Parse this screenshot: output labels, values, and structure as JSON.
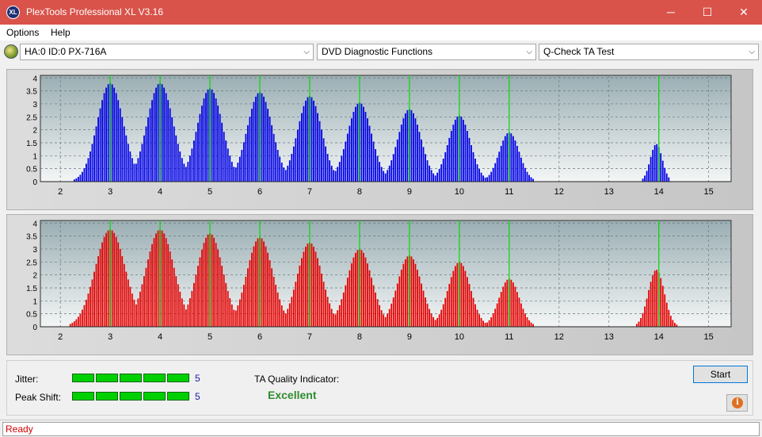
{
  "window": {
    "title": "PlexTools Professional XL V3.16",
    "icon_text": "XL",
    "minimize_glyph": "─",
    "maximize_glyph": "☐",
    "close_glyph": "✕"
  },
  "menu": {
    "items": [
      "Options",
      "Help"
    ]
  },
  "toolbar": {
    "drive": "HA:0 ID:0  PX-716A",
    "function": "DVD Diagnostic Functions",
    "test": "Q-Check TA Test",
    "dropdown_glyph": "⌵"
  },
  "colors": {
    "top_bars": "#0000e6",
    "bottom_bars": "#e60000",
    "ideal_marker": "#00dd00",
    "quality_text": "#2e8b2e",
    "status_text": "#d00000"
  },
  "chart_data": [
    {
      "type": "bar",
      "name": "top",
      "color": "#0000e6",
      "x_ticks": [
        2,
        3,
        4,
        5,
        6,
        7,
        8,
        9,
        10,
        11,
        12,
        13,
        14,
        15
      ],
      "y_ticks": [
        "0",
        "0.5",
        "1",
        "1.5",
        "2",
        "2.5",
        "3",
        "3.5",
        "4"
      ],
      "xlim": [
        1.6,
        15.45
      ],
      "ylim": [
        0,
        4.1
      ],
      "ideal_markers": [
        3,
        4,
        5,
        6,
        7,
        8,
        9,
        10,
        11,
        14
      ],
      "peaks": [
        {
          "center": 3,
          "height": 3.8,
          "sigma": 0.26
        },
        {
          "center": 4,
          "height": 3.8,
          "sigma": 0.26
        },
        {
          "center": 5,
          "height": 3.6,
          "sigma": 0.25
        },
        {
          "center": 6,
          "height": 3.45,
          "sigma": 0.25
        },
        {
          "center": 7,
          "height": 3.3,
          "sigma": 0.24
        },
        {
          "center": 8,
          "height": 3.05,
          "sigma": 0.24
        },
        {
          "center": 9,
          "height": 2.8,
          "sigma": 0.23
        },
        {
          "center": 10,
          "height": 2.55,
          "sigma": 0.22
        },
        {
          "center": 11,
          "height": 1.9,
          "sigma": 0.2
        },
        {
          "center": 13.95,
          "height": 1.45,
          "sigma": 0.12
        }
      ]
    },
    {
      "type": "bar",
      "name": "bottom",
      "color": "#e60000",
      "x_ticks": [
        2,
        3,
        4,
        5,
        6,
        7,
        8,
        9,
        10,
        11,
        12,
        13,
        14,
        15
      ],
      "y_ticks": [
        "0",
        "0.5",
        "1",
        "1.5",
        "2",
        "2.5",
        "3",
        "3.5",
        "4"
      ],
      "xlim": [
        1.6,
        15.45
      ],
      "ylim": [
        0,
        4.1
      ],
      "ideal_markers": [
        3,
        4,
        5,
        6,
        7,
        8,
        9,
        10,
        11,
        14
      ],
      "peaks": [
        {
          "center": 3,
          "height": 3.75,
          "sigma": 0.3
        },
        {
          "center": 4,
          "height": 3.75,
          "sigma": 0.28
        },
        {
          "center": 5,
          "height": 3.6,
          "sigma": 0.26
        },
        {
          "center": 6,
          "height": 3.45,
          "sigma": 0.26
        },
        {
          "center": 7,
          "height": 3.25,
          "sigma": 0.25
        },
        {
          "center": 8,
          "height": 3.0,
          "sigma": 0.25
        },
        {
          "center": 9,
          "height": 2.75,
          "sigma": 0.24
        },
        {
          "center": 10,
          "height": 2.5,
          "sigma": 0.22
        },
        {
          "center": 11,
          "height": 1.85,
          "sigma": 0.2
        },
        {
          "center": 13.95,
          "height": 2.2,
          "sigma": 0.16
        }
      ]
    }
  ],
  "results": {
    "jitter_label": "Jitter:",
    "jitter_value": "5",
    "jitter_level": 5,
    "peak_shift_label": "Peak Shift:",
    "peak_shift_value": "5",
    "peak_shift_level": 5,
    "ta_quality_label": "TA Quality Indicator:",
    "ta_quality_value": "Excellent"
  },
  "buttons": {
    "start": "Start",
    "info_glyph": "i"
  },
  "status": {
    "text": "Ready"
  }
}
